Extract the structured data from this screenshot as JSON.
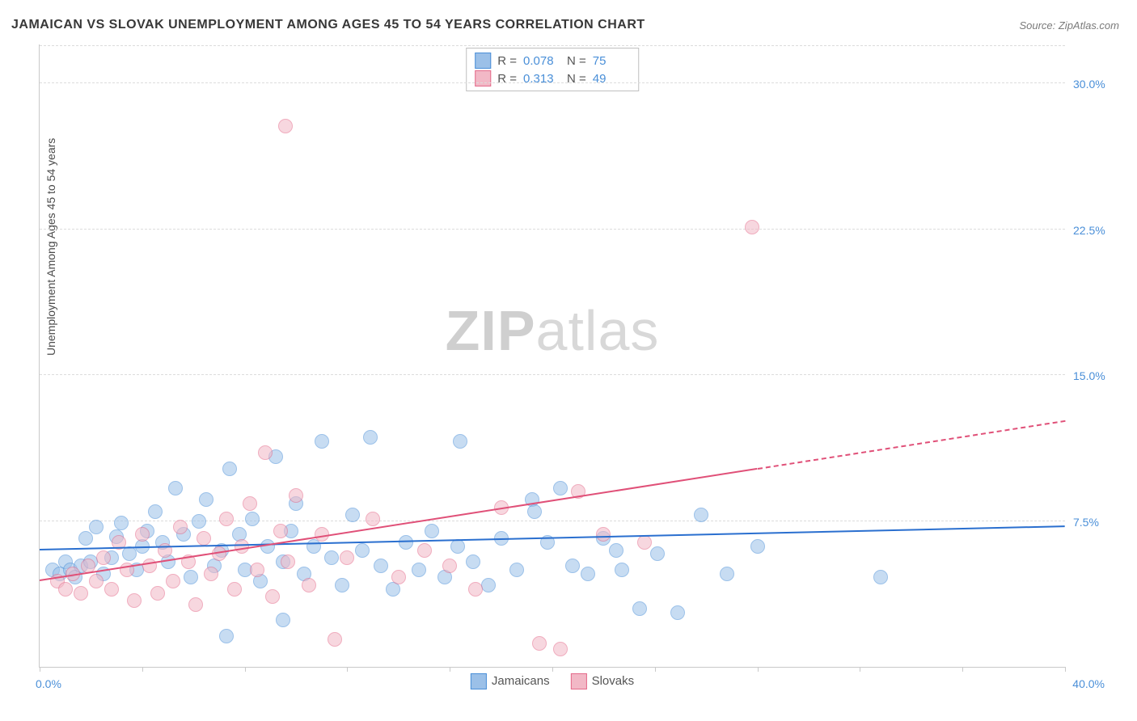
{
  "title": "JAMAICAN VS SLOVAK UNEMPLOYMENT AMONG AGES 45 TO 54 YEARS CORRELATION CHART",
  "source_label": "Source: ",
  "source_value": "ZipAtlas.com",
  "watermark_a": "ZIP",
  "watermark_b": "atlas",
  "chart": {
    "type": "scatter",
    "y_axis_label": "Unemployment Among Ages 45 to 54 years",
    "xlim": [
      0,
      40
    ],
    "ylim": [
      0,
      32
    ],
    "x_label_min": "0.0%",
    "x_label_max": "40.0%",
    "y_ticks": [
      7.5,
      15.0,
      22.5,
      30.0
    ],
    "y_tick_labels": [
      "7.5%",
      "15.0%",
      "22.5%",
      "30.0%"
    ],
    "background_color": "#ffffff",
    "grid_color": "#dcdcdc",
    "axis_color": "#c9c9c9",
    "x_tick_positions": [
      0,
      4,
      8,
      12,
      16,
      20,
      24,
      28,
      32,
      36,
      40
    ],
    "series": [
      {
        "name": "Jamaicans",
        "fill_color": "#9bc0e8",
        "stroke_color": "#4a8fd8",
        "fill_opacity": 0.55,
        "marker_radius": 8,
        "regression": {
          "x0": 0,
          "y0": 6.0,
          "x1": 40,
          "y1": 7.2,
          "color": "#2a6fcf",
          "width": 2,
          "dashed_from_x": null
        },
        "stats": {
          "R": "0.078",
          "N": "75"
        },
        "points": [
          [
            0.5,
            5.0
          ],
          [
            0.8,
            4.8
          ],
          [
            1.0,
            5.4
          ],
          [
            1.2,
            5.0
          ],
          [
            1.4,
            4.6
          ],
          [
            1.6,
            5.2
          ],
          [
            1.8,
            6.6
          ],
          [
            2.0,
            5.4
          ],
          [
            2.2,
            7.2
          ],
          [
            2.5,
            4.8
          ],
          [
            2.8,
            5.6
          ],
          [
            3.0,
            6.7
          ],
          [
            3.2,
            7.4
          ],
          [
            3.5,
            5.8
          ],
          [
            3.8,
            5.0
          ],
          [
            4.0,
            6.2
          ],
          [
            4.2,
            7.0
          ],
          [
            4.5,
            8.0
          ],
          [
            4.8,
            6.4
          ],
          [
            5.0,
            5.4
          ],
          [
            5.3,
            9.2
          ],
          [
            5.6,
            6.8
          ],
          [
            5.9,
            4.6
          ],
          [
            6.2,
            7.5
          ],
          [
            6.5,
            8.6
          ],
          [
            6.8,
            5.2
          ],
          [
            7.1,
            6.0
          ],
          [
            7.3,
            1.6
          ],
          [
            7.4,
            10.2
          ],
          [
            7.8,
            6.8
          ],
          [
            8.0,
            5.0
          ],
          [
            8.3,
            7.6
          ],
          [
            8.6,
            4.4
          ],
          [
            8.9,
            6.2
          ],
          [
            9.2,
            10.8
          ],
          [
            9.5,
            5.4
          ],
          [
            9.5,
            2.4
          ],
          [
            9.8,
            7.0
          ],
          [
            10.0,
            8.4
          ],
          [
            10.3,
            4.8
          ],
          [
            10.7,
            6.2
          ],
          [
            11.0,
            11.6
          ],
          [
            11.4,
            5.6
          ],
          [
            11.8,
            4.2
          ],
          [
            12.2,
            7.8
          ],
          [
            12.6,
            6.0
          ],
          [
            12.9,
            11.8
          ],
          [
            13.3,
            5.2
          ],
          [
            13.8,
            4.0
          ],
          [
            14.3,
            6.4
          ],
          [
            14.8,
            5.0
          ],
          [
            15.3,
            7.0
          ],
          [
            15.8,
            4.6
          ],
          [
            16.3,
            6.2
          ],
          [
            16.4,
            11.6
          ],
          [
            16.9,
            5.4
          ],
          [
            17.5,
            4.2
          ],
          [
            18.0,
            6.6
          ],
          [
            18.6,
            5.0
          ],
          [
            19.2,
            8.6
          ],
          [
            19.3,
            8.0
          ],
          [
            19.8,
            6.4
          ],
          [
            20.3,
            9.2
          ],
          [
            20.8,
            5.2
          ],
          [
            21.4,
            4.8
          ],
          [
            22.0,
            6.6
          ],
          [
            22.7,
            5.0
          ],
          [
            23.4,
            3.0
          ],
          [
            24.1,
            5.8
          ],
          [
            24.9,
            2.8
          ],
          [
            25.8,
            7.8
          ],
          [
            26.8,
            4.8
          ],
          [
            28.0,
            6.2
          ],
          [
            32.8,
            4.6
          ],
          [
            22.5,
            6.0
          ]
        ]
      },
      {
        "name": "Slovaks",
        "fill_color": "#f2b8c6",
        "stroke_color": "#e46a8a",
        "fill_opacity": 0.55,
        "marker_radius": 8,
        "regression": {
          "x0": 0,
          "y0": 4.4,
          "x1": 40,
          "y1": 12.6,
          "color": "#e05078",
          "width": 2,
          "dashed_from_x": 28
        },
        "stats": {
          "R": "0.313",
          "N": "49"
        },
        "points": [
          [
            0.7,
            4.4
          ],
          [
            1.0,
            4.0
          ],
          [
            1.3,
            4.8
          ],
          [
            1.6,
            3.8
          ],
          [
            1.9,
            5.2
          ],
          [
            2.2,
            4.4
          ],
          [
            2.5,
            5.6
          ],
          [
            2.8,
            4.0
          ],
          [
            3.1,
            6.4
          ],
          [
            3.4,
            5.0
          ],
          [
            3.7,
            3.4
          ],
          [
            4.0,
            6.8
          ],
          [
            4.3,
            5.2
          ],
          [
            4.6,
            3.8
          ],
          [
            4.9,
            6.0
          ],
          [
            5.2,
            4.4
          ],
          [
            5.5,
            7.2
          ],
          [
            5.8,
            5.4
          ],
          [
            6.1,
            3.2
          ],
          [
            6.4,
            6.6
          ],
          [
            6.7,
            4.8
          ],
          [
            7.0,
            5.8
          ],
          [
            7.3,
            7.6
          ],
          [
            7.6,
            4.0
          ],
          [
            7.9,
            6.2
          ],
          [
            8.2,
            8.4
          ],
          [
            8.5,
            5.0
          ],
          [
            8.8,
            11.0
          ],
          [
            9.1,
            3.6
          ],
          [
            9.4,
            7.0
          ],
          [
            9.6,
            27.8
          ],
          [
            9.7,
            5.4
          ],
          [
            10.0,
            8.8
          ],
          [
            10.5,
            4.2
          ],
          [
            11.0,
            6.8
          ],
          [
            11.5,
            1.4
          ],
          [
            12.0,
            5.6
          ],
          [
            13.0,
            7.6
          ],
          [
            14.0,
            4.6
          ],
          [
            15.0,
            6.0
          ],
          [
            16.0,
            5.2
          ],
          [
            17.0,
            4.0
          ],
          [
            18.0,
            8.2
          ],
          [
            19.5,
            1.2
          ],
          [
            20.3,
            0.9
          ],
          [
            21.0,
            9.0
          ],
          [
            22.0,
            6.8
          ],
          [
            23.6,
            6.4
          ],
          [
            27.8,
            22.6
          ]
        ]
      }
    ],
    "stats_box": {
      "R_label": "R =",
      "N_label": "N ="
    },
    "legend_labels": [
      "Jamaicans",
      "Slovaks"
    ]
  },
  "colors": {
    "title": "#383838",
    "source": "#7a7a7a",
    "axis_text": "#4a8fd8"
  }
}
